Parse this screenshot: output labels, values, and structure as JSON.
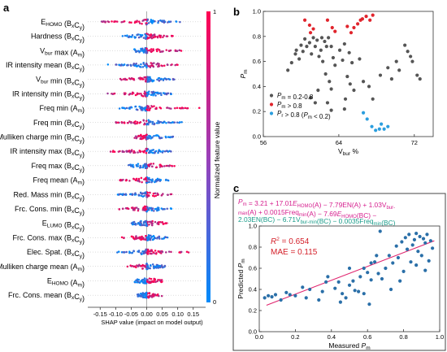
{
  "panels": {
    "a": "a",
    "b": "b",
    "c": "c"
  },
  "chart_data": [
    {
      "type": "scatter",
      "kind": "beeswarm",
      "xlabel": "SHAP value (impact on model output)",
      "xlim": [
        -0.19,
        0.19
      ],
      "x_ticks": [
        "-0.15",
        "-0.10",
        "-0.05",
        "0.00",
        "0.05",
        "0.10",
        "0.15"
      ],
      "colorbar": {
        "label": "Normalized feature value",
        "max": "1",
        "min": "0",
        "high_color": "#ff0052",
        "low_color": "#008bfb"
      },
      "features": [
        {
          "label": "E_HOMO (B_xC_y)",
          "main": "E",
          "sub": "HOMO",
          "suffix": " (B",
          "sub2": "x",
          "mid": "C",
          "sub3": "y",
          "end": ")",
          "range": [
            -0.17,
            0.11
          ],
          "neg_color": "high"
        },
        {
          "label": "Hardness (B_xC_y)",
          "main": "Hardness",
          "sub": "",
          "suffix": " (B",
          "sub2": "x",
          "mid": "C",
          "sub3": "y",
          "end": ")",
          "range": [
            -0.08,
            0.09
          ],
          "neg_color": "low"
        },
        {
          "label": "V_bur max (A_m)",
          "main": "V",
          "sub": "bur",
          "suffix": " max (A",
          "sub2": "m",
          "mid": "",
          "sub3": "",
          "end": ")",
          "range": [
            -0.04,
            0.12
          ],
          "neg_color": "low"
        },
        {
          "label": "IR intensity mean (B_xC_y)",
          "main": "IR intensity mean",
          "sub": "",
          "suffix": " (B",
          "sub2": "x",
          "mid": "C",
          "sub3": "y",
          "end": ")",
          "range": [
            -0.14,
            0.1
          ],
          "neg_color": "low"
        },
        {
          "label": "V_bur min (B_xC_y)",
          "main": "V",
          "sub": "bur",
          "suffix": " min (B",
          "sub2": "x",
          "mid": "C",
          "sub3": "y",
          "end": ")",
          "range": [
            -0.09,
            0.09
          ],
          "neg_color": "high"
        },
        {
          "label": "IR intensity min (B_xC_y)",
          "main": "IR intensity min",
          "sub": "",
          "suffix": " (B",
          "sub2": "x",
          "mid": "C",
          "sub3": "y",
          "end": ")",
          "range": [
            -0.13,
            0.08
          ],
          "neg_color": "high"
        },
        {
          "label": "Freq min (A_m)",
          "main": "Freq min",
          "sub": "",
          "suffix": " (A",
          "sub2": "m",
          "mid": "",
          "sub3": "",
          "end": ")",
          "range": [
            -0.09,
            0.17
          ],
          "neg_color": "low"
        },
        {
          "label": "Freq min (B_xC_y)",
          "main": "Freq min",
          "sub": "",
          "suffix": " (B",
          "sub2": "x",
          "mid": "C",
          "sub3": "y",
          "end": ")",
          "range": [
            -0.1,
            0.12
          ],
          "neg_color": "high"
        },
        {
          "label": "Mulliken charge min (B_xC_y)",
          "main": "Mulliken charge min",
          "sub": "",
          "suffix": " (B",
          "sub2": "x",
          "mid": "C",
          "sub3": "y",
          "end": ")",
          "range": [
            -0.04,
            0.09
          ],
          "neg_color": "high"
        },
        {
          "label": "IR intensity max (B_xC_y)",
          "main": "IR intensity max",
          "sub": "",
          "suffix": " (B",
          "sub2": "x",
          "mid": "C",
          "sub3": "y",
          "end": ")",
          "range": [
            -0.12,
            0.08
          ],
          "neg_color": "high"
        },
        {
          "label": "Freq max (B_xC_y)",
          "main": "Freq max",
          "sub": "",
          "suffix": " (B",
          "sub2": "x",
          "mid": "C",
          "sub3": "y",
          "end": ")",
          "range": [
            -0.06,
            0.09
          ],
          "neg_color": "low"
        },
        {
          "label": "Freq mean (A_m)",
          "main": "Freq mean",
          "sub": "",
          "suffix": " (A",
          "sub2": "m",
          "mid": "",
          "sub3": "",
          "end": ")",
          "range": [
            -0.09,
            0.07
          ],
          "neg_color": "high"
        },
        {
          "label": "Red. Mass min (B_xC_y)",
          "main": "Red. Mass min",
          "sub": "",
          "suffix": " (B",
          "sub2": "x",
          "mid": "C",
          "sub3": "y",
          "end": ")",
          "range": [
            -0.1,
            0.08
          ],
          "neg_color": "low"
        },
        {
          "label": "Frc. Cons. min (B_xC_y)",
          "main": "Frc. Cons. min",
          "sub": "",
          "suffix": " (B",
          "sub2": "x",
          "mid": "C",
          "sub3": "y",
          "end": ")",
          "range": [
            -0.09,
            0.08
          ],
          "neg_color": "high"
        },
        {
          "label": "E_LUMO (B_xC_y)",
          "main": "E",
          "sub": "LUMO",
          "suffix": " (B",
          "sub2": "x",
          "mid": "C",
          "sub3": "y",
          "end": ")",
          "range": [
            -0.05,
            0.08
          ],
          "neg_color": "low"
        },
        {
          "label": "Frc. Cons. max (B_xC_y)",
          "main": "Frc. Cons. max",
          "sub": "",
          "suffix": " (B",
          "sub2": "x",
          "mid": "C",
          "sub3": "y",
          "end": ")",
          "range": [
            -0.08,
            0.07
          ],
          "neg_color": "high"
        },
        {
          "label": "Elec. Spat. (B_xC_y)",
          "main": "Elec. Spat.",
          "sub": "",
          "suffix": " (B",
          "sub2": "x",
          "mid": "C",
          "sub3": "y",
          "end": ")",
          "range": [
            -0.1,
            0.15
          ],
          "neg_color": "low"
        },
        {
          "label": "Mulliken charge mean (A_m)",
          "main": "Mulliken charge mean",
          "sub": "",
          "suffix": " (A",
          "sub2": "m",
          "mid": "",
          "sub3": "",
          "end": ")",
          "range": [
            -0.07,
            0.06
          ],
          "neg_color": "high"
        },
        {
          "label": "E_HOMO (A_m)",
          "main": "E",
          "sub": "HOMO",
          "suffix": " (A",
          "sub2": "m",
          "mid": "",
          "sub3": "",
          "end": ")",
          "range": [
            -0.04,
            0.05
          ],
          "neg_color": "low"
        },
        {
          "label": "Frc. Cons. mean (B_xC_y)",
          "main": "Frc. Cons. mean",
          "sub": "",
          "suffix": " (B",
          "sub2": "x",
          "mid": "C",
          "sub3": "y",
          "end": ")",
          "range": [
            -0.03,
            0.05
          ],
          "neg_color": "low"
        }
      ]
    },
    {
      "type": "scatter",
      "xlabel": "V_bur %",
      "ylabel": "P_m",
      "xlim": [
        56,
        74
      ],
      "ylim": [
        0,
        1.0
      ],
      "x_ticks": [
        56,
        64,
        72
      ],
      "y_ticks": [
        "0.0",
        "0.2",
        "0.4",
        "0.6",
        "0.8",
        "1.0"
      ],
      "series": [
        {
          "name": "P_m = 0.2-0.8",
          "color": "#555555",
          "points": [
            [
              58.6,
              0.53
            ],
            [
              59.0,
              0.59
            ],
            [
              59.4,
              0.66
            ],
            [
              59.5,
              0.69
            ],
            [
              59.8,
              0.62
            ],
            [
              60.0,
              0.73
            ],
            [
              60.2,
              0.68
            ],
            [
              60.4,
              0.78
            ],
            [
              60.6,
              0.72
            ],
            [
              60.9,
              0.75
            ],
            [
              61.1,
              0.66
            ],
            [
              61.3,
              0.79
            ],
            [
              61.5,
              0.72
            ],
            [
              61.7,
              0.77
            ],
            [
              61.9,
              0.64
            ],
            [
              62.1,
              0.69
            ],
            [
              62.2,
              0.79
            ],
            [
              62.5,
              0.76
            ],
            [
              62.7,
              0.72
            ],
            [
              62.9,
              0.79
            ],
            [
              62.3,
              0.6
            ],
            [
              62.6,
              0.5
            ],
            [
              63.2,
              0.72
            ],
            [
              63.4,
              0.63
            ],
            [
              63.6,
              0.57
            ],
            [
              63.0,
              0.44
            ],
            [
              63.2,
              0.38
            ],
            [
              62.8,
              0.27
            ],
            [
              61.8,
              0.37
            ],
            [
              61.5,
              0.27
            ],
            [
              61.0,
              0.31
            ],
            [
              64.1,
              0.69
            ],
            [
              64.4,
              0.61
            ],
            [
              64.6,
              0.74
            ],
            [
              65.1,
              0.67
            ],
            [
              65.4,
              0.59
            ],
            [
              64.9,
              0.48
            ],
            [
              65.2,
              0.42
            ],
            [
              65.6,
              0.37
            ],
            [
              64.7,
              0.3
            ],
            [
              66.2,
              0.62
            ],
            [
              66.6,
              0.44
            ],
            [
              67.2,
              0.4
            ],
            [
              67.6,
              0.3
            ],
            [
              68.4,
              0.49
            ],
            [
              69.2,
              0.55
            ],
            [
              69.6,
              0.46
            ],
            [
              70.1,
              0.6
            ],
            [
              70.4,
              0.53
            ],
            [
              71.0,
              0.73
            ],
            [
              71.3,
              0.68
            ],
            [
              71.6,
              0.64
            ],
            [
              71.8,
              0.6
            ],
            [
              72.3,
              0.49
            ],
            [
              72.6,
              0.46
            ],
            [
              64.6,
              0.22
            ],
            [
              63.2,
              0.21
            ]
          ]
        },
        {
          "name": "P_m > 0.8",
          "color": "#e0242c",
          "points": [
            [
              60.4,
              0.93
            ],
            [
              60.9,
              0.89
            ],
            [
              61.3,
              0.86
            ],
            [
              61.0,
              0.83
            ],
            [
              62.8,
              0.93
            ],
            [
              63.3,
              0.87
            ],
            [
              63.6,
              0.84
            ],
            [
              64.9,
              0.88
            ],
            [
              65.3,
              0.83
            ],
            [
              65.6,
              0.87
            ],
            [
              66.0,
              0.9
            ],
            [
              66.3,
              0.93
            ],
            [
              66.5,
              0.94
            ],
            [
              66.9,
              0.96
            ],
            [
              67.3,
              0.93
            ],
            [
              67.6,
              0.97
            ]
          ]
        },
        {
          "name": "P_r > 0.8 (P_m < 0.2)",
          "color": "#2b9ede",
          "points": [
            [
              66.6,
              0.19
            ],
            [
              67.0,
              0.14
            ],
            [
              67.5,
              0.08
            ],
            [
              67.9,
              0.05
            ],
            [
              68.3,
              0.06
            ],
            [
              68.5,
              0.1
            ],
            [
              68.8,
              0.06
            ],
            [
              69.2,
              0.08
            ]
          ]
        }
      ]
    },
    {
      "type": "scatter",
      "xlabel": "Measured P_m",
      "ylabel": "Predicted P_m",
      "xlim": [
        0.0,
        1.0
      ],
      "ylim": [
        0.0,
        1.0
      ],
      "x_ticks": [
        "0.0",
        "0.2",
        "0.4",
        "0.6",
        "0.8",
        "1.0"
      ],
      "y_ticks": [
        "0.0",
        "0.2",
        "0.4",
        "0.6",
        "0.8",
        "1.0"
      ],
      "fit_line": [
        [
          0.04,
          0.25
        ],
        [
          0.97,
          0.86
        ]
      ],
      "equation": [
        "P_m = 3.21 + 17.01E_HOMO(A) − 7.79EN(A) + 1.03V_bur-",
        "max(A) + 0.0015Freq_min(A) − 7.69E_HOMO(BC) −",
        "2.03EN(BC) − 6.71V_bur-min(BC) − 0.0035Freq_min(BC)"
      ],
      "r2": "0.654",
      "mae": "MAE = 0.115",
      "points": [
        [
          0.03,
          0.32
        ],
        [
          0.05,
          0.34
        ],
        [
          0.07,
          0.33
        ],
        [
          0.09,
          0.35
        ],
        [
          0.15,
          0.37
        ],
        [
          0.17,
          0.35
        ],
        [
          0.26,
          0.32
        ],
        [
          0.28,
          0.4
        ],
        [
          0.35,
          0.38
        ],
        [
          0.37,
          0.47
        ],
        [
          0.38,
          0.52
        ],
        [
          0.42,
          0.41
        ],
        [
          0.44,
          0.47
        ],
        [
          0.46,
          0.36
        ],
        [
          0.48,
          0.32
        ],
        [
          0.5,
          0.44
        ],
        [
          0.5,
          0.6
        ],
        [
          0.52,
          0.48
        ],
        [
          0.53,
          0.39
        ],
        [
          0.55,
          0.38
        ],
        [
          0.56,
          0.52
        ],
        [
          0.58,
          0.6
        ],
        [
          0.6,
          0.56
        ],
        [
          0.61,
          0.26
        ],
        [
          0.62,
          0.65
        ],
        [
          0.62,
          0.49
        ],
        [
          0.64,
          0.66
        ],
        [
          0.65,
          0.72
        ],
        [
          0.66,
          0.55
        ],
        [
          0.67,
          0.95
        ],
        [
          0.7,
          0.6
        ],
        [
          0.72,
          0.72
        ],
        [
          0.73,
          0.4
        ],
        [
          0.74,
          0.65
        ],
        [
          0.76,
          0.81
        ],
        [
          0.77,
          0.7
        ],
        [
          0.79,
          0.85
        ],
        [
          0.8,
          0.57
        ],
        [
          0.81,
          0.89
        ],
        [
          0.82,
          0.78
        ],
        [
          0.83,
          0.92
        ],
        [
          0.84,
          0.66
        ],
        [
          0.85,
          0.82
        ],
        [
          0.86,
          0.87
        ],
        [
          0.87,
          0.93
        ],
        [
          0.88,
          0.76
        ],
        [
          0.89,
          0.9
        ],
        [
          0.9,
          0.72
        ],
        [
          0.91,
          0.88
        ],
        [
          0.92,
          0.84
        ],
        [
          0.93,
          0.92
        ],
        [
          0.94,
          0.67
        ],
        [
          0.95,
          0.86
        ],
        [
          0.96,
          0.79
        ],
        [
          0.92,
          0.58
        ],
        [
          0.87,
          0.63
        ],
        [
          0.78,
          0.48
        ],
        [
          0.68,
          0.5
        ],
        [
          0.58,
          0.36
        ],
        [
          0.45,
          0.28
        ],
        [
          0.33,
          0.3
        ],
        [
          0.24,
          0.42
        ],
        [
          0.2,
          0.34
        ],
        [
          0.12,
          0.3
        ]
      ]
    }
  ]
}
